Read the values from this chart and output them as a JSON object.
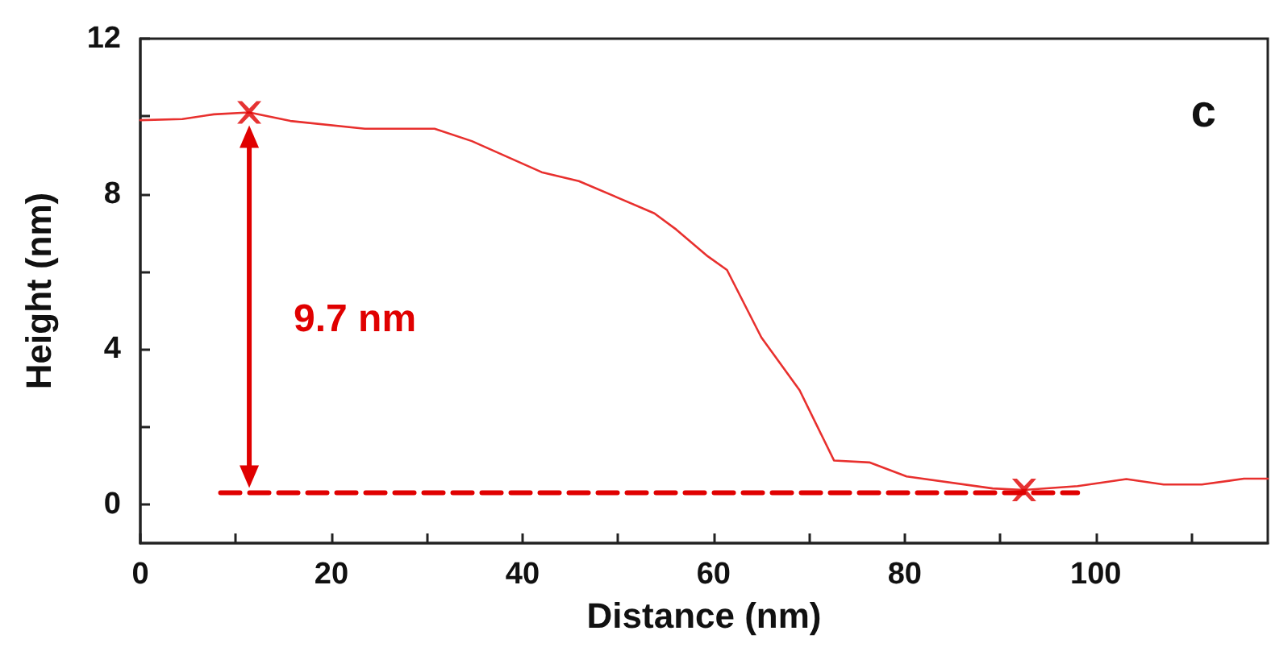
{
  "chart_data": {
    "type": "line",
    "xlabel": "Distance (nm)",
    "ylabel": "Height (nm)",
    "annotations": [
      "9.7 nm",
      "c"
    ],
    "xlim": [
      0,
      118
    ],
    "ylim": [
      -1,
      12
    ],
    "xticks": [
      0,
      {
        "value": 10,
        "label": null
      },
      20,
      {
        "value": 30,
        "label": null
      },
      40,
      {
        "value": 50,
        "label": null
      },
      60,
      {
        "value": 70,
        "label": null
      },
      80,
      {
        "value": 90,
        "label": null
      },
      100,
      {
        "value": 110,
        "label": null
      }
    ],
    "yticks": [
      0,
      {
        "value": 2,
        "label": null
      },
      4,
      {
        "value": 6,
        "label": null
      },
      8,
      {
        "value": 10,
        "label": null
      },
      12
    ],
    "grid": false,
    "series": [
      {
        "color": "#e8302e",
        "marker": "none",
        "line_style": "solid",
        "x": [
          0,
          4.4,
          7.7,
          11.4,
          15.7,
          23.5,
          30.8,
          34.7,
          42,
          45.9,
          53.8,
          56.1,
          59.4,
          61.4,
          65,
          69,
          72.6,
          76.3,
          80.2,
          89.2,
          92.5,
          98.1,
          103.2,
          107.1,
          111.1,
          115.5,
          118
        ],
        "values": [
          9.9,
          9.93,
          10.05,
          10.1,
          9.88,
          9.68,
          9.68,
          9.36,
          8.56,
          8.33,
          7.5,
          7.08,
          6.39,
          6.04,
          4.3,
          2.94,
          1.13,
          1.08,
          0.72,
          0.41,
          0.37,
          0.47,
          0.65,
          0.51,
          0.51,
          0.66,
          0.66
        ]
      },
      {
        "type": "scatter",
        "color": "#e00000",
        "marker": "cross",
        "x": [
          11.4,
          92.5
        ],
        "values": [
          10.1,
          0.37
        ]
      },
      {
        "type": "line",
        "color": "#e00000",
        "marker": "none",
        "line_style": "dashed",
        "x": [
          8.4,
          98.1
        ],
        "values": [
          0.3,
          0.3
        ]
      }
    ]
  }
}
